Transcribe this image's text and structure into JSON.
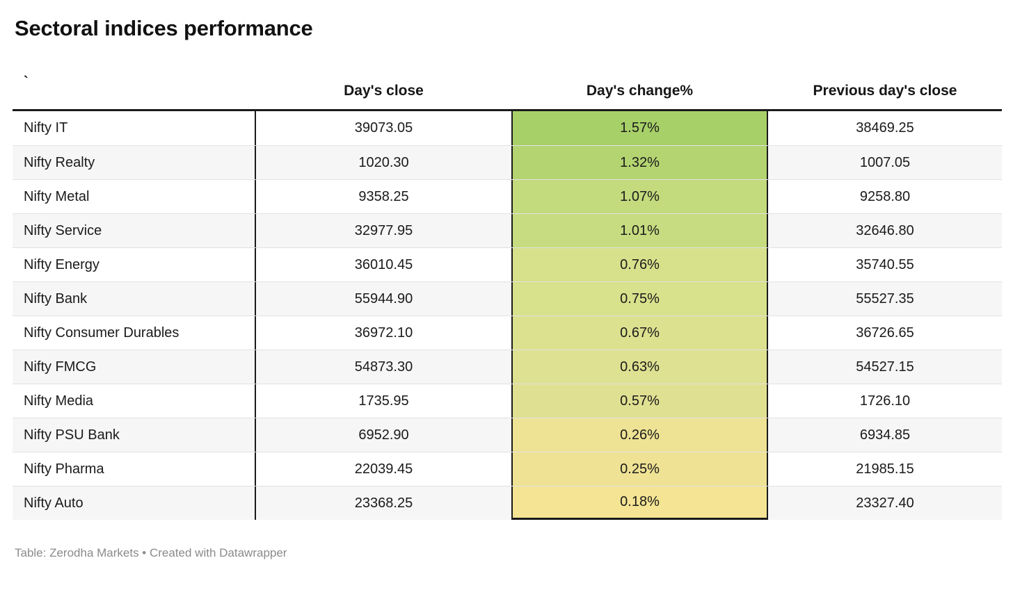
{
  "title": "Sectoral indices performance",
  "table": {
    "columns": [
      {
        "label": "`"
      },
      {
        "label": "Day's close"
      },
      {
        "label": "Day's change%"
      },
      {
        "label": "Previous day's close"
      }
    ],
    "rows": [
      {
        "name": "Nifty IT",
        "close": "39073.05",
        "change": "1.57%",
        "prev": "38469.25",
        "color": "#a8d069"
      },
      {
        "name": "Nifty Realty",
        "close": "1020.30",
        "change": "1.32%",
        "prev": "1007.05",
        "color": "#b4d471"
      },
      {
        "name": "Nifty Metal",
        "close": "9358.25",
        "change": "1.07%",
        "prev": "9258.80",
        "color": "#c3da7d"
      },
      {
        "name": "Nifty Service",
        "close": "32977.95",
        "change": "1.01%",
        "prev": "32646.80",
        "color": "#c7dc80"
      },
      {
        "name": "Nifty Energy",
        "close": "36010.45",
        "change": "0.76%",
        "prev": "35740.55",
        "color": "#d7e08b"
      },
      {
        "name": "Nifty Bank",
        "close": "55944.90",
        "change": "0.75%",
        "prev": "55527.35",
        "color": "#d8e18c"
      },
      {
        "name": "Nifty Consumer Durables",
        "close": "36972.10",
        "change": "0.67%",
        "prev": "36726.65",
        "color": "#dce18f"
      },
      {
        "name": "Nifty FMCG",
        "close": "54873.30",
        "change": "0.63%",
        "prev": "54527.15",
        "color": "#dee191"
      },
      {
        "name": "Nifty Media",
        "close": "1735.95",
        "change": "0.57%",
        "prev": "1726.10",
        "color": "#e0e092"
      },
      {
        "name": "Nifty PSU Bank",
        "close": "6952.90",
        "change": "0.26%",
        "prev": "6934.85",
        "color": "#eee294"
      },
      {
        "name": "Nifty Pharma",
        "close": "22039.45",
        "change": "0.25%",
        "prev": "21985.15",
        "color": "#efe294"
      },
      {
        "name": "Nifty Auto",
        "close": "23368.25",
        "change": "0.18%",
        "prev": "23327.40",
        "color": "#f4e494"
      }
    ]
  },
  "footer": "Table: Zerodha Markets • Created with Datawrapper",
  "colors": {
    "header_border": "#1a1a1a",
    "row_stripe": "#f6f6f6",
    "footer_text": "#8a8a8a",
    "heatmap_max_green": "#a8d069",
    "heatmap_min_yellow": "#f4e494"
  },
  "chart_data": {
    "type": "table",
    "title": "Sectoral indices performance",
    "columns": [
      "`",
      "Day's close",
      "Day's change%",
      "Previous day's close"
    ],
    "rows": [
      [
        "Nifty IT",
        39073.05,
        "1.57%",
        38469.25
      ],
      [
        "Nifty Realty",
        1020.3,
        "1.32%",
        1007.05
      ],
      [
        "Nifty Metal",
        9358.25,
        "1.07%",
        9258.8
      ],
      [
        "Nifty Service",
        32977.95,
        "1.01%",
        32646.8
      ],
      [
        "Nifty Energy",
        36010.45,
        "0.76%",
        35740.55
      ],
      [
        "Nifty Bank",
        55944.9,
        "0.75%",
        55527.35
      ],
      [
        "Nifty Consumer Durables",
        36972.1,
        "0.67%",
        36726.65
      ],
      [
        "Nifty FMCG",
        54873.3,
        "0.63%",
        54527.15
      ],
      [
        "Nifty Media",
        1735.95,
        "0.57%",
        1726.1
      ],
      [
        "Nifty PSU Bank",
        6952.9,
        "0.26%",
        6934.85
      ],
      [
        "Nifty Pharma",
        22039.45,
        "0.25%",
        21985.15
      ],
      [
        "Nifty Auto",
        23368.25,
        "0.18%",
        23327.4
      ]
    ],
    "heatmap_column": "Day's change%",
    "heatmap_scale": [
      "#a8d069",
      "#f4e494"
    ],
    "source": "Zerodha Markets",
    "tool": "Datawrapper"
  }
}
